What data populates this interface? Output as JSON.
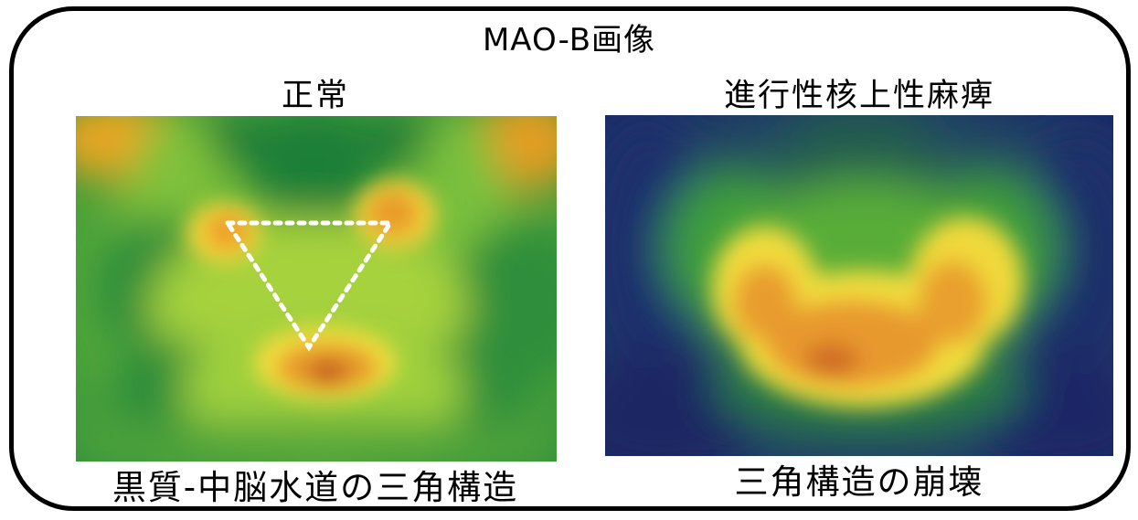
{
  "title": "MAO-B画像",
  "panels": [
    {
      "label": "正常",
      "caption": "黒質-中脳水道の三角構造",
      "image": "normal-mao-b-pet-heatmap"
    },
    {
      "label": "進行性核上性麻痺",
      "caption": "三角構造の崩壊",
      "image": "psp-mao-b-pet-heatmap"
    }
  ],
  "colors": {
    "frame": "#000000",
    "heat_low": "#1f2f74",
    "heat_mid": "#2f9b3c",
    "heat_high": "#f4e33d",
    "heat_peak": "#d66f22",
    "triangle": "#ffffff"
  }
}
